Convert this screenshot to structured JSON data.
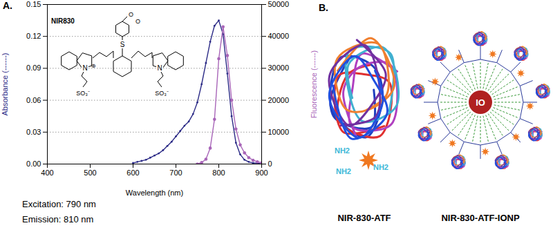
{
  "chart_data": {
    "type": "line",
    "panel_label": "A.",
    "x_label": "Wavelength (nm)",
    "y_label": "Absorbance (------)",
    "y2_label": "Fluorescence (------)",
    "xlim": [
      400,
      900
    ],
    "xticks": [
      400,
      500,
      600,
      700,
      800,
      900
    ],
    "ylim": [
      0,
      0.15
    ],
    "yticks": [
      {
        "value": 0,
        "label": "0.00"
      },
      0.03,
      0.06,
      0.09,
      0.12,
      0.15
    ],
    "y2lim": [
      0,
      50000
    ],
    "y2ticks": [
      0,
      10000,
      20000,
      30000,
      40000,
      50000
    ],
    "grid": true,
    "x": [
      600,
      610,
      620,
      630,
      640,
      650,
      660,
      670,
      680,
      690,
      700,
      710,
      720,
      730,
      740,
      750,
      760,
      770,
      780,
      790,
      800,
      810,
      820,
      830,
      840,
      850,
      860,
      870,
      880,
      890,
      900
    ],
    "series": [
      {
        "color": "#2b2a86",
        "marker": "dot",
        "line_style": "solid",
        "values": [
          0.001,
          0.002,
          0.003,
          0.004,
          0.006,
          0.008,
          0.01,
          0.013,
          0.017,
          0.021,
          0.026,
          0.031,
          0.036,
          0.04,
          0.047,
          0.058,
          0.075,
          0.095,
          0.115,
          0.13,
          0.135,
          0.122,
          0.085,
          0.045,
          0.02,
          0.009,
          0.004,
          0.002,
          0.001,
          0.001,
          0.0
        ]
      },
      {
        "axis": "y2",
        "color": "#a865b8",
        "marker": "circle",
        "line_style": "solid",
        "values": [
          null,
          null,
          null,
          null,
          null,
          null,
          null,
          null,
          null,
          null,
          null,
          null,
          null,
          null,
          null,
          0,
          500,
          1500,
          5000,
          14000,
          33000,
          43000,
          34000,
          20000,
          11000,
          6000,
          3500,
          2000,
          1200,
          700,
          400
        ]
      }
    ],
    "annotations": [
      "Excitation: 790 nm",
      "Emission: 810 nm"
    ],
    "inset": {
      "name": "NIR830",
      "atoms": [
        "N",
        "N",
        "S",
        "O",
        "O"
      ],
      "charge": "⊕",
      "sulfonates": [
        "SO₃⁻",
        "SO₃⁻"
      ]
    }
  },
  "panel_b": {
    "panel_label": "B.",
    "left": {
      "caption": "NIR-830-ATF",
      "amine_labels": [
        "NH2",
        "NH2",
        "NH2"
      ]
    },
    "right": {
      "caption": "NIR-830-ATF-IONP",
      "core_label": "IO"
    }
  }
}
